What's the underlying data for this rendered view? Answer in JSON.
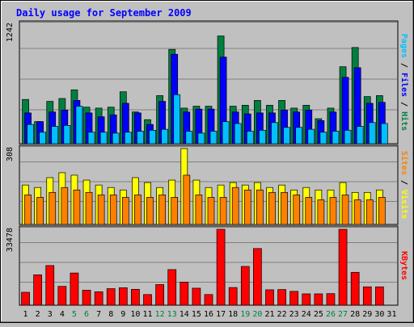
{
  "chart_data": {
    "type": "bar",
    "title": "Daily usage for September 2009",
    "categories": [
      "1",
      "2",
      "3",
      "4",
      "5",
      "6",
      "7",
      "8",
      "9",
      "10",
      "11",
      "12",
      "13",
      "14",
      "15",
      "16",
      "17",
      "18",
      "19",
      "20",
      "21",
      "22",
      "23",
      "24",
      "25",
      "26",
      "27",
      "28",
      "29",
      "30",
      "31"
    ],
    "weekend_days": [
      "5",
      "6",
      "12",
      "13",
      "19",
      "20",
      "26",
      "27"
    ],
    "panels": [
      {
        "id": "hits-panel",
        "max_label": "1242",
        "ylim": [
          0,
          1242
        ],
        "side_legend": [
          {
            "text": "Pages",
            "color": "#00c0ff"
          },
          {
            "text": " / ",
            "color": "#000000"
          },
          {
            "text": "Files",
            "color": "#0000ff"
          },
          {
            "text": " / ",
            "color": "#000000"
          },
          {
            "text": "Hits",
            "color": "#008040"
          }
        ],
        "series": [
          {
            "name": "Hits",
            "color": "#008040",
            "values": [
              460,
              230,
              440,
              470,
              560,
              380,
              370,
              380,
              540,
              330,
              250,
              500,
              980,
              370,
              390,
              390,
              1120,
              390,
              400,
              450,
              400,
              450,
              370,
              400,
              260,
              370,
              800,
              1000,
              490,
              500,
              0
            ]
          },
          {
            "name": "Files",
            "color": "#0000ff",
            "values": [
              320,
              230,
              330,
              350,
              450,
              320,
              280,
              300,
              420,
              320,
              200,
              440,
              930,
              330,
              360,
              360,
              900,
              330,
              310,
              320,
              320,
              350,
              330,
              350,
              240,
              330,
              690,
              790,
              420,
              430,
              0
            ]
          },
          {
            "name": "Pages",
            "color": "#00c0ff",
            "values": [
              200,
              120,
              180,
              190,
              390,
              120,
              120,
              110,
              120,
              130,
              140,
              150,
              510,
              130,
              110,
              130,
              230,
              210,
              130,
              140,
              220,
              170,
              170,
              150,
              120,
              130,
              140,
              180,
              220,
              210,
              0
            ]
          }
        ]
      },
      {
        "id": "visits-panel",
        "max_label": "308",
        "ylim": [
          0,
          308
        ],
        "side_legend": [
          {
            "text": "Sites",
            "color": "#ff8000"
          },
          {
            "text": " / ",
            "color": "#000000"
          },
          {
            "text": "Visits",
            "color": "#ffff00"
          }
        ],
        "series": [
          {
            "name": "Visits",
            "color": "#ffff00",
            "values": [
              160,
              150,
              190,
              210,
              200,
              180,
              160,
              150,
              140,
              190,
              170,
              150,
              180,
              308,
              180,
              150,
              160,
              170,
              160,
              170,
              150,
              160,
              140,
              150,
              140,
              140,
              170,
              130,
              130,
              140,
              0
            ]
          },
          {
            "name": "Sites",
            "color": "#ff8000",
            "values": [
              120,
              110,
              130,
              150,
              140,
              130,
              120,
              120,
              110,
              120,
              110,
              120,
              110,
              200,
              120,
              110,
              110,
              150,
              140,
              140,
              130,
              130,
              120,
              110,
              100,
              110,
              120,
              100,
              100,
              110,
              0
            ]
          }
        ]
      },
      {
        "id": "kbytes-panel",
        "max_label": "33478",
        "ylim": [
          0,
          33478
        ],
        "side_legend": [
          {
            "text": "KBytes",
            "color": "#ff0000"
          }
        ],
        "series": [
          {
            "name": "KBytes",
            "color": "#ff0000",
            "values": [
              5700,
              13400,
              17500,
              8300,
              14200,
              6600,
              5900,
              7300,
              7700,
              7000,
              4700,
              9100,
              15700,
              10200,
              7500,
              4700,
              33478,
              7800,
              17100,
              25000,
              6800,
              6900,
              6100,
              5000,
              5000,
              5100,
              33478,
              14500,
              8100,
              8100,
              0
            ]
          }
        ]
      }
    ]
  }
}
